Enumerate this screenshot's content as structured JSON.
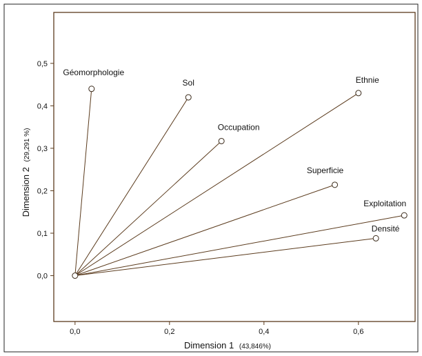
{
  "chart_data": {
    "type": "scatter",
    "style": "biplot-vectors-from-origin",
    "title": "",
    "xlabel": "Dimension 1",
    "xlabel_unit": "(43,846%)",
    "ylabel": "Dimension 2",
    "ylabel_unit": "(29,291 %)",
    "xlim": [
      -0.045,
      0.72
    ],
    "ylim": [
      -0.108,
      0.62
    ],
    "x_ticks": [
      {
        "value": 0.0,
        "label": "0,0"
      },
      {
        "value": 0.2,
        "label": "0,2"
      },
      {
        "value": 0.4,
        "label": "0,4"
      },
      {
        "value": 0.6,
        "label": "0,6"
      }
    ],
    "y_ticks": [
      {
        "value": 0.0,
        "label": "0,0"
      },
      {
        "value": 0.1,
        "label": "0,1"
      },
      {
        "value": 0.2,
        "label": "0,2"
      },
      {
        "value": 0.3,
        "label": "0,3"
      },
      {
        "value": 0.4,
        "label": "0,4"
      },
      {
        "value": 0.5,
        "label": "0,5"
      }
    ],
    "origin": {
      "x": 0.0,
      "y": 0.0
    },
    "points": [
      {
        "label": "Géomorphologie",
        "x": 0.035,
        "y": 0.44
      },
      {
        "label": "Sol",
        "x": 0.24,
        "y": 0.42
      },
      {
        "label": "Occupation",
        "x": 0.31,
        "y": 0.317
      },
      {
        "label": "Ethnie",
        "x": 0.6,
        "y": 0.43
      },
      {
        "label": "Superficie",
        "x": 0.55,
        "y": 0.214
      },
      {
        "label": "Exploitation",
        "x": 0.697,
        "y": 0.142
      },
      {
        "label": "Densité",
        "x": 0.637,
        "y": 0.088
      }
    ],
    "grid": false,
    "legend": "none",
    "colors": {
      "line": "#5a3a1c",
      "frame": "#5a3a1c",
      "marker_fill": "#ffffff",
      "marker_stroke": "#3a2a1a",
      "text": "#111111"
    }
  }
}
